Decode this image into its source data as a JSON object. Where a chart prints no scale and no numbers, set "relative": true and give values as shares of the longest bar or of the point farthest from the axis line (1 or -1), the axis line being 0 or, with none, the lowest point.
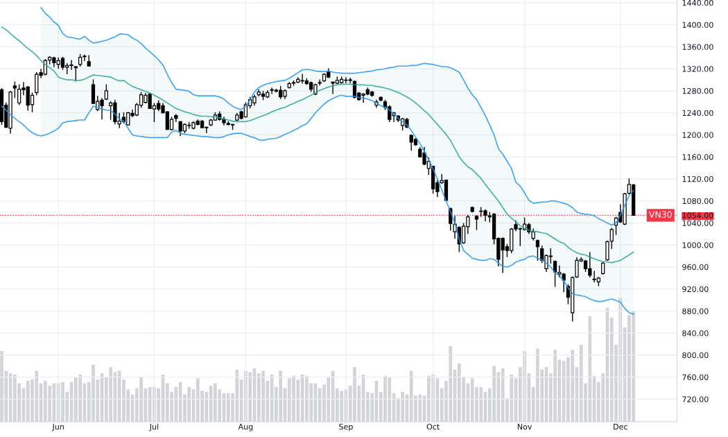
{
  "chart_data": [
    {
      "type": "candlestick",
      "categories": [
        null,
        null,
        null,
        null,
        null,
        null,
        null,
        null,
        null,
        null,
        null,
        null,
        null,
        "Jun",
        null,
        null,
        null,
        null,
        null,
        null,
        null,
        null,
        null,
        null,
        null,
        null,
        null,
        null,
        null,
        null,
        null,
        null,
        null,
        null,
        null,
        "Jul",
        null,
        null,
        null,
        null,
        null,
        null,
        null,
        null,
        null,
        null,
        null,
        null,
        null,
        null,
        null,
        null,
        null,
        null,
        null,
        null,
        "Aug",
        null,
        null,
        null,
        null,
        null,
        null,
        null,
        null,
        null,
        null,
        null,
        null,
        null,
        null,
        null,
        null,
        null,
        null,
        null,
        null,
        null,
        null,
        "Sep",
        null,
        null,
        null,
        null,
        null,
        null,
        null,
        null,
        null,
        null,
        null,
        null,
        null,
        null,
        null,
        null,
        null,
        null,
        null,
        "Oct",
        null,
        null,
        null,
        null,
        null,
        null,
        null,
        null,
        null,
        null,
        null,
        null,
        null,
        null,
        null,
        null,
        null,
        null,
        null,
        null,
        "Nov",
        null,
        null,
        null,
        null,
        null,
        null,
        null,
        null,
        null,
        null,
        null,
        null,
        null,
        null,
        null,
        null,
        null,
        null,
        null,
        null,
        null,
        "Dec",
        null,
        null,
        null
      ],
      "ohlc": [
        [
          1282,
          1284,
          1219,
          1224
        ],
        [
          1254,
          1258,
          1213,
          1214
        ],
        [
          1212,
          1279,
          1203,
          1278
        ],
        [
          1289,
          1296,
          1268,
          1285
        ],
        [
          1258,
          1291,
          1255,
          1283
        ],
        [
          1285,
          1295,
          1273,
          1282
        ],
        [
          1287,
          1288,
          1245,
          1254
        ],
        [
          1255,
          1276,
          1242,
          1272
        ],
        [
          1277,
          1313,
          1273,
          1310
        ],
        [
          1313,
          1319,
          1304,
          1308
        ],
        [
          1310,
          1337,
          1309,
          1335
        ],
        [
          1336,
          1342,
          1329,
          1341
        ],
        [
          1340,
          1341,
          1324,
          1331
        ],
        [
          1328,
          1340,
          1321,
          1335
        ],
        [
          1339,
          1341,
          1319,
          1323
        ],
        [
          1323,
          1329,
          1311,
          1326
        ],
        [
          1327,
          1335,
          1319,
          1326
        ],
        [
          1324,
          1324,
          1298,
          1322
        ],
        [
          1328,
          1346,
          1325,
          1341
        ],
        [
          1343,
          1345,
          1335,
          1342
        ],
        [
          1333,
          1344,
          1325,
          1325
        ],
        [
          1291,
          1300,
          1257,
          1257
        ],
        [
          1246,
          1270,
          1244,
          1261
        ],
        [
          1263,
          1266,
          1229,
          1253
        ],
        [
          1265,
          1291,
          1264,
          1280
        ],
        [
          1253,
          1260,
          1228,
          1258
        ],
        [
          1258,
          1263,
          1220,
          1224
        ],
        [
          1220,
          1239,
          1213,
          1225
        ],
        [
          1232,
          1240,
          1222,
          1224
        ],
        [
          1218,
          1241,
          1218,
          1240
        ],
        [
          1239,
          1245,
          1233,
          1235
        ],
        [
          1236,
          1257,
          1235,
          1255
        ],
        [
          1254,
          1277,
          1250,
          1273
        ],
        [
          1259,
          1275,
          1258,
          1272
        ],
        [
          1274,
          1276,
          1248,
          1248
        ],
        [
          1247,
          1257,
          1224,
          1253
        ],
        [
          1257,
          1262,
          1244,
          1247
        ],
        [
          1253,
          1257,
          1240,
          1240
        ],
        [
          1242,
          1242,
          1210,
          1210
        ],
        [
          1210,
          1232,
          1209,
          1228
        ],
        [
          1235,
          1237,
          1224,
          1230
        ],
        [
          1224,
          1224,
          1199,
          1207
        ],
        [
          1207,
          1220,
          1204,
          1219
        ],
        [
          1217,
          1222,
          1212,
          1217
        ],
        [
          1212,
          1224,
          1211,
          1222
        ],
        [
          1225,
          1227,
          1218,
          1219
        ],
        [
          1225,
          1226,
          1213,
          1213
        ],
        [
          1214,
          1214,
          1204,
          1213
        ],
        [
          1218,
          1228,
          1217,
          1227
        ],
        [
          1227,
          1240,
          1227,
          1236
        ],
        [
          1238,
          1242,
          1227,
          1228
        ],
        [
          1228,
          1232,
          1218,
          1222
        ],
        [
          1221,
          1224,
          1218,
          1219
        ],
        [
          1219,
          1219,
          1210,
          1218
        ],
        [
          1227,
          1239,
          1226,
          1236
        ],
        [
          1242,
          1243,
          1229,
          1230
        ],
        [
          1233,
          1258,
          1232,
          1255
        ],
        [
          1253,
          1268,
          1249,
          1264
        ],
        [
          1258,
          1272,
          1254,
          1269
        ],
        [
          1273,
          1282,
          1271,
          1278
        ],
        [
          1274,
          1279,
          1264,
          1270
        ],
        [
          1269,
          1280,
          1268,
          1277
        ],
        [
          1281,
          1285,
          1275,
          1282
        ],
        [
          1281,
          1283,
          1278,
          1279
        ],
        [
          1281,
          1288,
          1266,
          1269
        ],
        [
          1270,
          1282,
          1266,
          1280
        ],
        [
          1286,
          1295,
          1285,
          1293
        ],
        [
          1294,
          1298,
          1290,
          1295
        ],
        [
          1296,
          1304,
          1295,
          1301
        ],
        [
          1298,
          1310,
          1294,
          1298
        ],
        [
          1298,
          1302,
          1292,
          1293
        ],
        [
          1295,
          1296,
          1279,
          1283
        ],
        [
          1274,
          1292,
          1273,
          1291
        ],
        [
          1294,
          1300,
          1291,
          1295
        ],
        [
          1298,
          1311,
          1297,
          1310
        ],
        [
          1314,
          1320,
          1304,
          1305
        ],
        [
          1296,
          1296,
          1275,
          1294
        ],
        [
          1294,
          1305,
          1293,
          1299
        ],
        [
          1295,
          1305,
          1294,
          1301
        ],
        [
          1299,
          1304,
          1295,
          1299
        ],
        [
          1300,
          1303,
          1295,
          1299
        ],
        [
          1297,
          1298,
          1267,
          1268
        ],
        [
          1276,
          1277,
          1263,
          1264
        ],
        [
          1272,
          1275,
          1259,
          1274
        ],
        [
          1282,
          1285,
          1273,
          1274
        ],
        [
          1278,
          1279,
          1270,
          1272
        ],
        [
          1254,
          1263,
          1250,
          1260
        ],
        [
          1268,
          1269,
          1262,
          1263
        ],
        [
          1260,
          1263,
          1246,
          1250
        ],
        [
          1251,
          1253,
          1224,
          1228
        ],
        [
          1235,
          1241,
          1224,
          1240
        ],
        [
          1234,
          1235,
          1224,
          1227
        ],
        [
          1217,
          1230,
          1209,
          1229
        ],
        [
          1228,
          1230,
          1213,
          1214
        ],
        [
          1199,
          1200,
          1172,
          1187
        ],
        [
          1192,
          1193,
          1181,
          1182
        ],
        [
          1174,
          1177,
          1160,
          1160
        ],
        [
          1167,
          1177,
          1146,
          1147
        ],
        [
          1139,
          1158,
          1128,
          1152
        ],
        [
          1143,
          1143,
          1094,
          1102
        ],
        [
          1113,
          1117,
          1088,
          1097
        ],
        [
          1113,
          1128,
          1112,
          1117
        ],
        [
          1118,
          1118,
          1081,
          1081
        ],
        [
          1066,
          1067,
          1027,
          1039
        ],
        [
          1024,
          1052,
          1012,
          1038
        ],
        [
          1032,
          1033,
          988,
          1002
        ],
        [
          1004,
          1039,
          1003,
          1034
        ],
        [
          1033,
          1054,
          1021,
          1051
        ],
        [
          1068,
          1069,
          1060,
          1061
        ],
        [
          1052,
          1053,
          1028,
          1047
        ],
        [
          1061,
          1068,
          1052,
          1061
        ],
        [
          1062,
          1064,
          1044,
          1054
        ],
        [
          1051,
          1059,
          1042,
          1053
        ],
        [
          1056,
          1057,
          1002,
          1011
        ],
        [
          1012,
          1013,
          962,
          974
        ],
        [
          1012,
          1013,
          950,
          991
        ],
        [
          997,
          1001,
          979,
          990
        ],
        [
          990,
          1030,
          986,
          1029
        ],
        [
          1037,
          1044,
          1026,
          1029
        ],
        [
          1029,
          1031,
          999,
          1029
        ],
        [
          1028,
          1049,
          1027,
          1038
        ],
        [
          1037,
          1039,
          1021,
          1024
        ],
        [
          1012,
          1029,
          1009,
          1024
        ],
        [
          1008,
          1009,
          972,
          997
        ],
        [
          993,
          998,
          968,
          972
        ],
        [
          957,
          982,
          952,
          981
        ],
        [
          980,
          993,
          967,
          979
        ],
        [
          970,
          971,
          925,
          951
        ],
        [
          947,
          962,
          942,
          950
        ],
        [
          947,
          948,
          915,
          936
        ],
        [
          925,
          928,
          893,
          905
        ],
        [
          877,
          942,
          862,
          941
        ],
        [
          942,
          977,
          941,
          972
        ],
        [
          971,
          977,
          970,
          974
        ],
        [
          971,
          972,
          952,
          957
        ],
        [
          957,
          986,
          942,
          945
        ],
        [
          938,
          952,
          933,
          937
        ],
        [
          933,
          941,
          926,
          940
        ],
        [
          948,
          968,
          947,
          967
        ],
        [
          973,
          1007,
          972,
          1006
        ],
        [
          1007,
          1030,
          994,
          1028
        ],
        [
          1036,
          1050,
          1019,
          1049
        ],
        [
          1059,
          1073,
          1041,
          1042
        ],
        [
          1038,
          1094,
          1037,
          1093
        ],
        [
          1094,
          1120,
          1093,
          1110
        ],
        [
          1109,
          1110,
          1054,
          1054
        ]
      ],
      "color": "#000000",
      "series": [
        {
          "type": "line",
          "color": "#2196f3",
          "values": [
            null,
            null,
            null,
            null,
            null,
            null,
            null,
            null,
            null,
            1431,
            1421,
            1414,
            1405,
            1399,
            1384,
            1378,
            1377,
            1375,
            1374,
            1379,
            1372,
            1367,
            1368,
            1370,
            1372,
            1375,
            1378,
            1383,
            1383,
            1382,
            1376,
            1372,
            1366,
            1358,
            1351,
            1344,
            1336,
            1327,
            1310,
            1295,
            1283,
            1282,
            1281,
            1279,
            1273,
            1271,
            1271,
            1271,
            1271,
            1271,
            1269,
            1265,
            1258,
            1252,
            1248,
            1246,
            1252,
            1264,
            1278,
            1286,
            1290,
            1293,
            1295,
            1297,
            1298,
            1299,
            1303,
            1308,
            1313,
            1318,
            1319,
            1318,
            1316,
            1315,
            1315,
            1316,
            1314,
            1313,
            1312,
            1312,
            1312,
            1312,
            1313,
            1314,
            1315,
            1316,
            1318,
            1319,
            1320,
            1322,
            1323,
            1325,
            1325,
            1325,
            1326,
            1326,
            1328,
            1330,
            1329,
            1328,
            1326,
            1324,
            1324,
            1322,
            1318,
            1314,
            1300,
            1285,
            1273,
            1264,
            1250,
            1235,
            1218,
            1200,
            1175,
            1165,
            1152,
            1139,
            1114,
            1107,
            1095,
            1081,
            1076,
            1077,
            1078,
            1078,
            1080,
            1080,
            1078,
            1076,
            1073,
            1068,
            1060,
            1057,
            1056,
            1055,
            1053,
            1048,
            1044,
            1040,
            1036,
            1040,
            1055,
            1072,
            1090,
            1099
          ]
        },
        {
          "type": "line",
          "color": "#2196f3",
          "values": [
            1252,
            1245,
            1237,
            1230,
            1224,
            1218,
            1210,
            1204,
            1200,
            1198,
            1200,
            1203,
            1207,
            1212,
            1222,
            1224,
            1225,
            1226,
            1227,
            1227,
            1240,
            1252,
            1250,
            1247,
            1245,
            1244,
            1238,
            1229,
            1225,
            1212,
            1200,
            1198,
            1197,
            1196,
            1195,
            1195,
            1195,
            1195,
            1195,
            1205,
            1208,
            1203,
            1201,
            1200,
            1199,
            1198,
            1197,
            1197,
            1196,
            1195,
            1195,
            1197,
            1200,
            1202,
            1203,
            1203,
            1200,
            1197,
            1195,
            1191,
            1190,
            1192,
            1193,
            1194,
            1197,
            1201,
            1204,
            1208,
            1212,
            1217,
            1220,
            1230,
            1240,
            1248,
            1256,
            1262,
            1266,
            1270,
            1272,
            1270,
            1270,
            1270,
            1268,
            1267,
            1265,
            1262,
            1258,
            1253,
            1250,
            1245,
            1238,
            1230,
            1224,
            1218,
            1208,
            1196,
            1184,
            1170,
            1155,
            1138,
            1120,
            1100,
            1080,
            1060,
            1040,
            1010,
            990,
            983,
            976,
            974,
            972,
            972,
            975,
            974,
            967,
            961,
            960,
            963,
            969,
            972,
            974,
            979,
            980,
            976,
            973,
            967,
            960,
            950,
            944,
            935,
            922,
            912,
            909,
            908,
            906,
            902,
            899,
            897,
            898,
            900,
            902,
            899,
            896,
            885,
            877,
            874
          ]
        },
        {
          "type": "line",
          "color": "#26a69a",
          "values": [
            1396,
            1391,
            1384,
            1377,
            1371,
            1364,
            1357,
            1351,
            1344,
            1335,
            1328,
            1322,
            1316,
            1305,
            1302,
            1300,
            1300,
            1299,
            1299,
            1301,
            1305,
            1309,
            1308,
            1307,
            1306,
            1305,
            1301,
            1298,
            1299,
            1293,
            1288,
            1285,
            1282,
            1279,
            1276,
            1272,
            1268,
            1263,
            1258,
            1253,
            1248,
            1245,
            1242,
            1240,
            1237,
            1235,
            1234,
            1234,
            1233,
            1233,
            1231,
            1229,
            1227,
            1225,
            1224,
            1224,
            1224,
            1226,
            1229,
            1232,
            1235,
            1238,
            1242,
            1245,
            1248,
            1250,
            1254,
            1257,
            1261,
            1264,
            1268,
            1272,
            1277,
            1281,
            1284,
            1287,
            1289,
            1291,
            1292,
            1292,
            1292,
            1291,
            1291,
            1291,
            1290,
            1290,
            1288,
            1287,
            1285,
            1283,
            1280,
            1277,
            1273,
            1269,
            1264,
            1258,
            1251,
            1244,
            1237,
            1228,
            1219,
            1210,
            1201,
            1190,
            1175,
            1160,
            1150,
            1142,
            1137,
            1129,
            1121,
            1110,
            1100,
            1090,
            1080,
            1068,
            1056,
            1049,
            1042,
            1035,
            1030,
            1027,
            1025,
            1024,
            1022,
            1021,
            1016,
            1011,
            1006,
            1003,
            996,
            990,
            986,
            983,
            982,
            978,
            975,
            972,
            970,
            969,
            968,
            970,
            972,
            977,
            982,
            987
          ],
          "upper": [
            null,
            null,
            null,
            null,
            null,
            null,
            null,
            null,
            null,
            1431,
            1421,
            1414,
            1405,
            1399,
            1384,
            1378,
            1377,
            1375,
            1374,
            1379,
            1372,
            1367,
            1368,
            1370,
            1372,
            1375,
            1378,
            1383,
            1383,
            1382,
            1376,
            1372,
            1366,
            1358,
            1351,
            1344,
            1336,
            1327,
            1310,
            1295,
            1283,
            1282,
            1281,
            1279,
            1273,
            1271,
            1271,
            1271,
            1271,
            1271,
            1269,
            1265,
            1258,
            1252,
            1248,
            1246,
            1252,
            1264,
            1278,
            1286,
            1290,
            1293,
            1295,
            1297,
            1298,
            1299,
            1303,
            1308,
            1313,
            1318,
            1319,
            1318,
            1316,
            1315,
            1315,
            1316,
            1314,
            1313,
            1312,
            1312,
            1312,
            1312,
            1313,
            1314,
            1315,
            1316,
            1318,
            1319,
            1320,
            1322,
            1323,
            1325,
            1325,
            1325,
            1326,
            1326,
            1328,
            1330,
            1329,
            1328,
            1326,
            1324,
            1324,
            1322,
            1318,
            1314,
            1300,
            1285,
            1273,
            1264,
            1250,
            1235,
            1218,
            1200,
            1175,
            1165,
            1152,
            1139,
            1114,
            1107,
            1095,
            1081,
            1076,
            1077,
            1078,
            1078,
            1080,
            1080,
            1078,
            1076,
            1073,
            1068,
            1060,
            1057,
            1056,
            1055,
            1053,
            1048,
            1044,
            1040,
            1036,
            1040,
            1055,
            1072,
            1090,
            1099
          ],
          "lower": [
            null,
            null,
            null,
            null,
            null,
            null,
            null,
            null,
            null,
            1198,
            1200,
            1203,
            1207,
            1212,
            1222,
            1224,
            1225,
            1226,
            1227,
            1227,
            1240,
            1252,
            1250,
            1247,
            1245,
            1244,
            1238,
            1229,
            1225,
            1212,
            1200,
            1198,
            1197,
            1196,
            1195,
            1195,
            1195,
            1195,
            1195,
            1205,
            1208,
            1203,
            1201,
            1200,
            1199,
            1198,
            1197,
            1197,
            1196,
            1195,
            1195,
            1197,
            1200,
            1202,
            1203,
            1203,
            1200,
            1197,
            1195,
            1191,
            1190,
            1192,
            1193,
            1194,
            1197,
            1201,
            1204,
            1208,
            1212,
            1217,
            1220,
            1230,
            1240,
            1248,
            1256,
            1262,
            1266,
            1270,
            1272,
            1270,
            1270,
            1270,
            1268,
            1267,
            1265,
            1262,
            1258,
            1253,
            1250,
            1245,
            1238,
            1230,
            1224,
            1218,
            1208,
            1196,
            1184,
            1170,
            1155,
            1138,
            1120,
            1100,
            1080,
            1060,
            1040,
            1010,
            990,
            983,
            976,
            974,
            972,
            972,
            975,
            974,
            967,
            961,
            960,
            963,
            969,
            972,
            974,
            979,
            980,
            976,
            973,
            967,
            960,
            950,
            944,
            935,
            922,
            912,
            909,
            908,
            906,
            902,
            899,
            897,
            898,
            900,
            902,
            899,
            896,
            885,
            877,
            874
          ]
        }
      ],
      "ylim": [
        679,
        1445
      ],
      "yticks": [
        {
          "value": 720,
          "label": "720.00"
        },
        {
          "value": 760,
          "label": "760.00"
        },
        {
          "value": 800,
          "label": "800.00"
        },
        {
          "value": 840,
          "label": "840.00"
        },
        {
          "value": 880,
          "label": "880.00"
        },
        {
          "value": 920,
          "label": "920.00"
        },
        {
          "value": 960,
          "label": "960.00"
        },
        {
          "value": 1000,
          "label": "1000.00"
        },
        {
          "value": 1040,
          "label": "1040.00"
        },
        {
          "value": 1054,
          "label": "1054.00"
        },
        {
          "value": 1080,
          "label": "1080.00"
        },
        {
          "value": 1120,
          "label": "1120.00"
        },
        {
          "value": 1160,
          "label": "1160.00"
        },
        {
          "value": 1200,
          "label": "1200.00"
        },
        {
          "value": 1240,
          "label": "1240.00"
        },
        {
          "value": 1280,
          "label": "1280.00"
        },
        {
          "value": 1320,
          "label": "1320.00"
        },
        {
          "value": 1360,
          "label": "1360.00"
        },
        {
          "value": 1400,
          "label": "1400.00"
        },
        {
          "value": 1440,
          "label": "1440.00"
        }
      ],
      "ref_lines": [
        {
          "axis": "y",
          "value": 1054,
          "label": "VN30",
          "color": "#f23645",
          "line_style": "dotted"
        }
      ],
      "grid": true
    },
    {
      "type": "bar",
      "relative": true,
      "color": "#c4c5ca",
      "categories": [
        null,
        null,
        null,
        null,
        null,
        null,
        null,
        null,
        null,
        null,
        null,
        null,
        null,
        null,
        null,
        null,
        null,
        null,
        null,
        null,
        null,
        null,
        null,
        null,
        null,
        null,
        null,
        null,
        null,
        null,
        null,
        null,
        null,
        null,
        null,
        null,
        null,
        null,
        null,
        null,
        null,
        null,
        null,
        null,
        null,
        null,
        null,
        null,
        null,
        null,
        null,
        null,
        null,
        null,
        null,
        null,
        null,
        null,
        null,
        null,
        null,
        null,
        null,
        null,
        null,
        null,
        null,
        null,
        null,
        null,
        null,
        null,
        null,
        null,
        null,
        null,
        null,
        null,
        null,
        null,
        null,
        null,
        null,
        null,
        null,
        null,
        null,
        null,
        null,
        null,
        null,
        null,
        null,
        null,
        null,
        null,
        null,
        null,
        null,
        null,
        null,
        null,
        null,
        null,
        null,
        null,
        null,
        null,
        null,
        null,
        null,
        null,
        null,
        null,
        null,
        null,
        null,
        null,
        null,
        null,
        null,
        null,
        null,
        null,
        null,
        null,
        null,
        null,
        null,
        null,
        null,
        null,
        null,
        null,
        null,
        null,
        null,
        null,
        null,
        null,
        null,
        null,
        null,
        null,
        null,
        null
      ],
      "values": [
        0.57,
        0.41,
        0.39,
        0.38,
        0.31,
        0.27,
        0.33,
        0.34,
        0.41,
        0.31,
        0.33,
        0.29,
        0.31,
        0.31,
        0.32,
        0.24,
        0.32,
        0.36,
        0.38,
        0.31,
        0.32,
        0.46,
        0.34,
        0.39,
        0.36,
        0.44,
        0.4,
        0.41,
        0.34,
        0.26,
        0.22,
        0.27,
        0.36,
        0.27,
        0.28,
        0.28,
        0.27,
        0.38,
        0.31,
        0.24,
        0.28,
        0.32,
        0.22,
        0.28,
        0.26,
        0.35,
        0.25,
        0.24,
        0.29,
        0.31,
        0.26,
        0.23,
        0.23,
        0.23,
        0.42,
        0.34,
        0.41,
        0.4,
        0.43,
        0.39,
        0.41,
        0.33,
        0.38,
        0.28,
        0.41,
        0.27,
        0.35,
        0.37,
        0.34,
        0.38,
        0.37,
        0.31,
        0.31,
        0.27,
        0.3,
        0.36,
        0.41,
        0.27,
        0.25,
        0.26,
        0.29,
        0.44,
        0.29,
        0.38,
        0.24,
        0.23,
        0.33,
        0.24,
        0.37,
        0.36,
        0.23,
        0.19,
        0.24,
        0.22,
        0.41,
        0.21,
        0.22,
        0.21,
        0.37,
        0.38,
        0.35,
        0.27,
        0.33,
        0.61,
        0.42,
        0.47,
        0.36,
        0.31,
        0.35,
        0.28,
        0.28,
        0.24,
        0.27,
        0.45,
        0.4,
        0.43,
        0.19,
        0.38,
        0.35,
        0.44,
        0.57,
        0.39,
        0.28,
        0.59,
        0.42,
        0.44,
        0.39,
        0.58,
        0.5,
        0.49,
        0.52,
        0.58,
        0.44,
        0.62,
        0.31,
        0.85,
        0.37,
        0.32,
        0.39,
        0.92,
        0.84,
        0.62,
        1,
        0.76,
        0.86,
        0.89
      ]
    }
  ]
}
